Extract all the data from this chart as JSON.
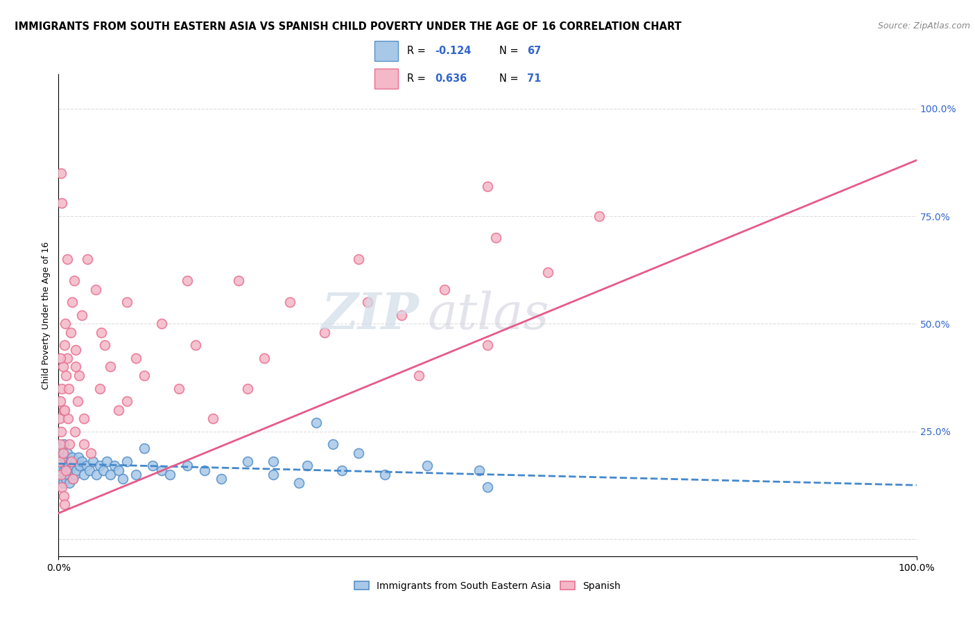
{
  "title": "IMMIGRANTS FROM SOUTH EASTERN ASIA VS SPANISH CHILD POVERTY UNDER THE AGE OF 16 CORRELATION CHART",
  "source": "Source: ZipAtlas.com",
  "ylabel": "Child Poverty Under the Age of 16",
  "blue_label": "Immigrants from South Eastern Asia",
  "pink_label": "Spanish",
  "blue_R": -0.124,
  "blue_N": 67,
  "pink_R": 0.636,
  "pink_N": 71,
  "blue_color": "#a8c8e8",
  "pink_color": "#f4b8c8",
  "blue_edge_color": "#5590c8",
  "pink_edge_color": "#e87090",
  "blue_line_color": "#4488cc",
  "pink_line_color": "#e85888",
  "watermark_zip": "ZIP",
  "watermark_atlas": "atlas",
  "xlim": [
    0.0,
    1.0
  ],
  "ylim": [
    -0.04,
    1.08
  ],
  "right_yticks": [
    0.25,
    0.5,
    0.75,
    1.0
  ],
  "right_yticklabels": [
    "25.0%",
    "50.0%",
    "75.0%",
    "100.0%"
  ],
  "grid_color": "#dddddd",
  "background_color": "#ffffff",
  "title_fontsize": 10.5,
  "axis_label_fontsize": 9,
  "tick_fontsize": 10,
  "legend_fontsize": 11,
  "source_fontsize": 9,
  "blue_trend_y_start": 0.175,
  "blue_trend_y_end": 0.125,
  "pink_trend_y_start": 0.06,
  "pink_trend_y_end": 0.88,
  "blue_scatter_x": [
    0.001,
    0.001,
    0.002,
    0.002,
    0.003,
    0.003,
    0.004,
    0.004,
    0.005,
    0.005,
    0.006,
    0.006,
    0.007,
    0.007,
    0.008,
    0.009,
    0.009,
    0.01,
    0.01,
    0.011,
    0.012,
    0.013,
    0.014,
    0.015,
    0.016,
    0.017,
    0.018,
    0.019,
    0.02,
    0.021,
    0.023,
    0.025,
    0.027,
    0.03,
    0.033,
    0.036,
    0.04,
    0.044,
    0.048,
    0.052,
    0.056,
    0.06,
    0.065,
    0.07,
    0.075,
    0.08,
    0.09,
    0.1,
    0.11,
    0.12,
    0.13,
    0.15,
    0.17,
    0.19,
    0.22,
    0.25,
    0.29,
    0.33,
    0.38,
    0.43,
    0.49,
    0.3,
    0.35,
    0.25,
    0.28,
    0.32,
    0.5
  ],
  "blue_scatter_y": [
    0.17,
    0.2,
    0.15,
    0.19,
    0.16,
    0.21,
    0.14,
    0.18,
    0.13,
    0.2,
    0.16,
    0.22,
    0.15,
    0.19,
    0.17,
    0.14,
    0.18,
    0.16,
    0.2,
    0.15,
    0.17,
    0.13,
    0.18,
    0.16,
    0.19,
    0.14,
    0.17,
    0.15,
    0.18,
    0.16,
    0.19,
    0.17,
    0.18,
    0.15,
    0.17,
    0.16,
    0.18,
    0.15,
    0.17,
    0.16,
    0.18,
    0.15,
    0.17,
    0.16,
    0.14,
    0.18,
    0.15,
    0.21,
    0.17,
    0.16,
    0.15,
    0.17,
    0.16,
    0.14,
    0.18,
    0.15,
    0.17,
    0.16,
    0.15,
    0.17,
    0.16,
    0.27,
    0.2,
    0.18,
    0.13,
    0.22,
    0.12
  ],
  "pink_scatter_x": [
    0.001,
    0.001,
    0.002,
    0.002,
    0.003,
    0.003,
    0.004,
    0.004,
    0.005,
    0.005,
    0.006,
    0.006,
    0.007,
    0.007,
    0.008,
    0.009,
    0.009,
    0.01,
    0.011,
    0.012,
    0.013,
    0.014,
    0.015,
    0.016,
    0.017,
    0.018,
    0.019,
    0.02,
    0.022,
    0.024,
    0.027,
    0.03,
    0.034,
    0.038,
    0.043,
    0.048,
    0.054,
    0.06,
    0.07,
    0.08,
    0.09,
    0.1,
    0.12,
    0.14,
    0.16,
    0.18,
    0.21,
    0.24,
    0.27,
    0.31,
    0.35,
    0.4,
    0.45,
    0.51,
    0.57,
    0.63,
    0.5,
    0.42,
    0.36,
    0.22,
    0.15,
    0.08,
    0.05,
    0.03,
    0.02,
    0.01,
    0.007,
    0.004,
    0.003,
    0.002,
    0.5
  ],
  "pink_scatter_y": [
    0.18,
    0.28,
    0.22,
    0.32,
    0.15,
    0.25,
    0.35,
    0.12,
    0.4,
    0.2,
    0.3,
    0.1,
    0.45,
    0.08,
    0.5,
    0.38,
    0.16,
    0.42,
    0.28,
    0.35,
    0.22,
    0.48,
    0.18,
    0.55,
    0.14,
    0.6,
    0.25,
    0.44,
    0.32,
    0.38,
    0.52,
    0.28,
    0.65,
    0.2,
    0.58,
    0.35,
    0.45,
    0.4,
    0.3,
    0.55,
    0.42,
    0.38,
    0.5,
    0.35,
    0.45,
    0.28,
    0.6,
    0.42,
    0.55,
    0.48,
    0.65,
    0.52,
    0.58,
    0.7,
    0.62,
    0.75,
    0.45,
    0.38,
    0.55,
    0.35,
    0.6,
    0.32,
    0.48,
    0.22,
    0.4,
    0.65,
    0.3,
    0.78,
    0.85,
    0.42,
    0.82
  ]
}
